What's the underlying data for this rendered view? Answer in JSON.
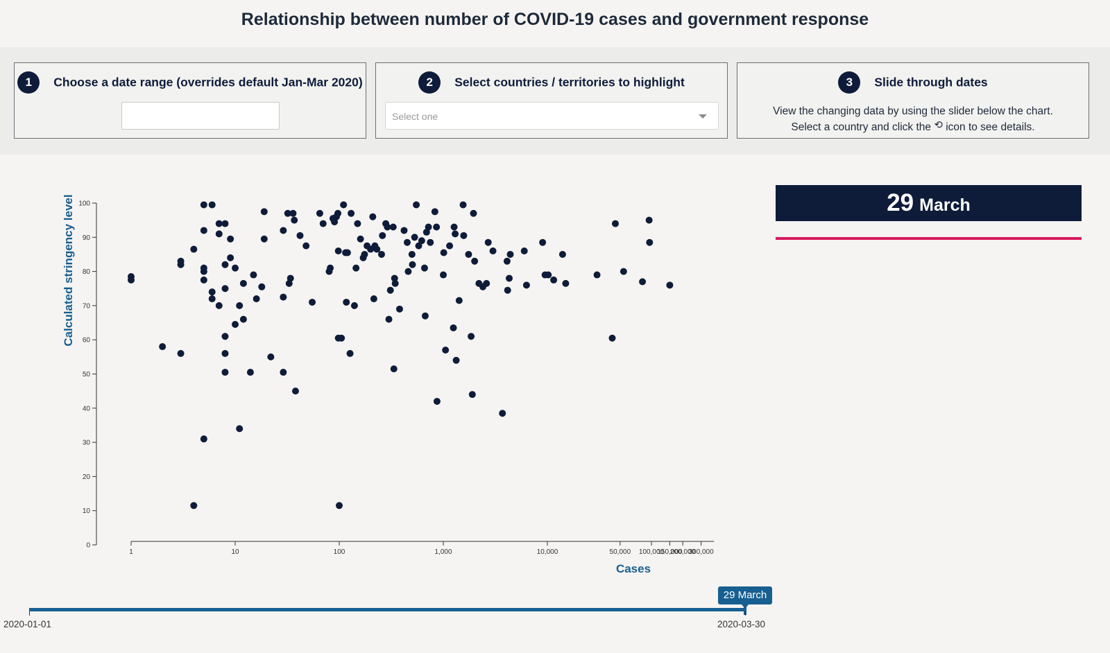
{
  "title": "Relationship between number of COVID-19 cases and government response",
  "steps": [
    {
      "number": "1",
      "label": "Choose a date range (overrides default Jan-Mar 2020)",
      "input_value": ""
    },
    {
      "number": "2",
      "label": "Select countries / territories to highlight",
      "placeholder": "Select one"
    },
    {
      "number": "3",
      "label": "Slide through dates",
      "description_line1": "View the changing data by using the slider below the chart.",
      "description_line2_a": "Select a country and click the",
      "description_line2_b": "icon to see details.",
      "icon": "history-icon"
    }
  ],
  "current_date": {
    "day": "29",
    "month": "March"
  },
  "slider": {
    "label": "29 March",
    "min": "2020-01-01",
    "max": "2020-03-30",
    "progress": 1.0
  },
  "colors": {
    "point": "#0e1c3a",
    "axis_label": "#175f91",
    "accent": "#d6185e",
    "date_box": "#0e1c3a"
  },
  "chart_data": {
    "type": "scatter",
    "title": "",
    "xlabel": "Cases",
    "ylabel": "Calculated stringency level",
    "xscale": "log",
    "xlim": [
      1,
      400000
    ],
    "ylim": [
      0,
      100
    ],
    "yticks": [
      0,
      10,
      20,
      30,
      40,
      50,
      60,
      70,
      80,
      90,
      100
    ],
    "xticks": [
      {
        "v": 1,
        "label": "1"
      },
      {
        "v": 10,
        "label": "10"
      },
      {
        "v": 100,
        "label": "100"
      },
      {
        "v": 1000,
        "label": "1,000"
      },
      {
        "v": 10000,
        "label": "10,000"
      },
      {
        "v": 50000,
        "label": "50,000"
      },
      {
        "v": 100000,
        "label": "100,000"
      },
      {
        "v": 150000,
        "label": "150,000"
      },
      {
        "v": 200000,
        "label": "200,000"
      },
      {
        "v": 300000,
        "label": "300,000"
      }
    ],
    "points": [
      [
        1,
        78.5
      ],
      [
        1,
        77.5
      ],
      [
        2,
        58
      ],
      [
        3,
        83
      ],
      [
        3,
        82
      ],
      [
        3,
        56
      ],
      [
        4,
        86.5
      ],
      [
        4,
        11.5
      ],
      [
        5,
        99.5
      ],
      [
        5,
        92
      ],
      [
        5,
        81
      ],
      [
        5,
        80
      ],
      [
        5,
        77.5
      ],
      [
        5,
        31
      ],
      [
        6,
        99.5
      ],
      [
        6,
        74
      ],
      [
        6,
        72
      ],
      [
        7,
        94
      ],
      [
        7,
        91
      ],
      [
        7,
        70
      ],
      [
        8,
        94
      ],
      [
        8,
        82
      ],
      [
        8,
        75
      ],
      [
        8,
        61
      ],
      [
        8,
        56
      ],
      [
        8,
        50.5
      ],
      [
        9,
        89.5
      ],
      [
        9,
        84
      ],
      [
        10,
        81
      ],
      [
        10,
        64.5
      ],
      [
        11,
        70
      ],
      [
        11,
        34
      ],
      [
        12,
        76.5
      ],
      [
        12,
        66
      ],
      [
        14,
        50.5
      ],
      [
        15,
        79
      ],
      [
        16,
        72
      ],
      [
        18,
        75.5
      ],
      [
        19,
        97.5
      ],
      [
        19,
        89.5
      ],
      [
        22,
        55
      ],
      [
        29,
        92
      ],
      [
        29,
        72.5
      ],
      [
        29,
        50.5
      ],
      [
        32,
        97
      ],
      [
        33,
        76.5
      ],
      [
        34,
        78
      ],
      [
        36,
        97
      ],
      [
        37,
        95
      ],
      [
        38,
        45
      ],
      [
        42,
        90.5
      ],
      [
        48,
        87.5
      ],
      [
        55,
        71
      ],
      [
        65,
        97
      ],
      [
        70,
        94
      ],
      [
        80,
        80
      ],
      [
        82,
        81
      ],
      [
        87,
        95.5
      ],
      [
        90,
        94.5
      ],
      [
        94,
        96
      ],
      [
        97,
        97
      ],
      [
        98,
        86
      ],
      [
        98,
        60.5
      ],
      [
        100,
        11.5
      ],
      [
        105,
        60.5
      ],
      [
        110,
        99.5
      ],
      [
        115,
        85.5
      ],
      [
        117,
        71
      ],
      [
        120,
        85.5
      ],
      [
        127,
        56
      ],
      [
        130,
        97
      ],
      [
        140,
        70
      ],
      [
        145,
        81
      ],
      [
        150,
        94
      ],
      [
        160,
        89.5
      ],
      [
        170,
        84
      ],
      [
        175,
        85
      ],
      [
        185,
        87.5
      ],
      [
        200,
        86.5
      ],
      [
        210,
        96
      ],
      [
        215,
        72
      ],
      [
        220,
        87.5
      ],
      [
        230,
        86.5
      ],
      [
        255,
        85
      ],
      [
        260,
        90.5
      ],
      [
        280,
        94
      ],
      [
        290,
        93
      ],
      [
        300,
        66
      ],
      [
        310,
        74.5
      ],
      [
        330,
        93
      ],
      [
        335,
        51.5
      ],
      [
        340,
        78
      ],
      [
        345,
        76.5
      ],
      [
        380,
        69
      ],
      [
        420,
        92
      ],
      [
        450,
        88.5
      ],
      [
        460,
        80
      ],
      [
        500,
        85
      ],
      [
        505,
        82
      ],
      [
        530,
        90
      ],
      [
        550,
        99.5
      ],
      [
        580,
        87.5
      ],
      [
        620,
        89
      ],
      [
        660,
        81
      ],
      [
        670,
        67
      ],
      [
        690,
        91.5
      ],
      [
        720,
        93
      ],
      [
        750,
        88.5
      ],
      [
        830,
        97.5
      ],
      [
        860,
        93
      ],
      [
        870,
        42
      ],
      [
        1000,
        79
      ],
      [
        1010,
        85.5
      ],
      [
        1050,
        57
      ],
      [
        1150,
        87.5
      ],
      [
        1250,
        63.5
      ],
      [
        1270,
        93
      ],
      [
        1300,
        91
      ],
      [
        1330,
        54
      ],
      [
        1420,
        71.5
      ],
      [
        1550,
        99.5
      ],
      [
        1570,
        90.5
      ],
      [
        1750,
        85
      ],
      [
        1850,
        61
      ],
      [
        1900,
        44
      ],
      [
        1950,
        97
      ],
      [
        2000,
        83
      ],
      [
        2200,
        76.5
      ],
      [
        2400,
        75.5
      ],
      [
        2600,
        76.5
      ],
      [
        2700,
        88.5
      ],
      [
        3000,
        86
      ],
      [
        3700,
        38.5
      ],
      [
        4100,
        83
      ],
      [
        4150,
        74.5
      ],
      [
        4300,
        78
      ],
      [
        4400,
        85
      ],
      [
        6000,
        86
      ],
      [
        6300,
        76
      ],
      [
        9000,
        88.5
      ],
      [
        9500,
        79
      ],
      [
        10200,
        79
      ],
      [
        11500,
        77.5
      ],
      [
        14000,
        85
      ],
      [
        15000,
        76.5
      ],
      [
        30000,
        79
      ],
      [
        42000,
        60.5
      ],
      [
        45000,
        94
      ],
      [
        54000,
        80
      ],
      [
        82000,
        77
      ],
      [
        95000,
        95
      ],
      [
        96000,
        88.5
      ],
      [
        150000,
        76
      ]
    ]
  }
}
